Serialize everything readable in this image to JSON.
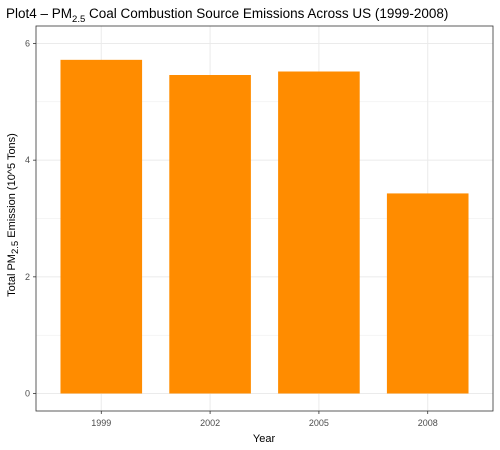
{
  "chart_data": {
    "type": "bar",
    "title": {
      "prefix": "Plot4 – PM",
      "subscript": "2.5",
      "suffix": " Coal Combustion Source Emissions Across US (1999-2008)"
    },
    "xlabel": "Year",
    "ylabel": {
      "prefix": "Total PM",
      "subscript": "2.5",
      "suffix": " Emission (10^5 Tons)"
    },
    "categories": [
      "1999",
      "2002",
      "2005",
      "2008"
    ],
    "values": [
      5.72,
      5.46,
      5.52,
      3.43
    ],
    "ylim": [
      0,
      6
    ],
    "yticks": [
      0,
      2,
      4,
      6
    ],
    "grid": true,
    "bar_color": "#FF8C00",
    "grid_color": "#EBEBEB",
    "panel_border_color": "#333333"
  }
}
